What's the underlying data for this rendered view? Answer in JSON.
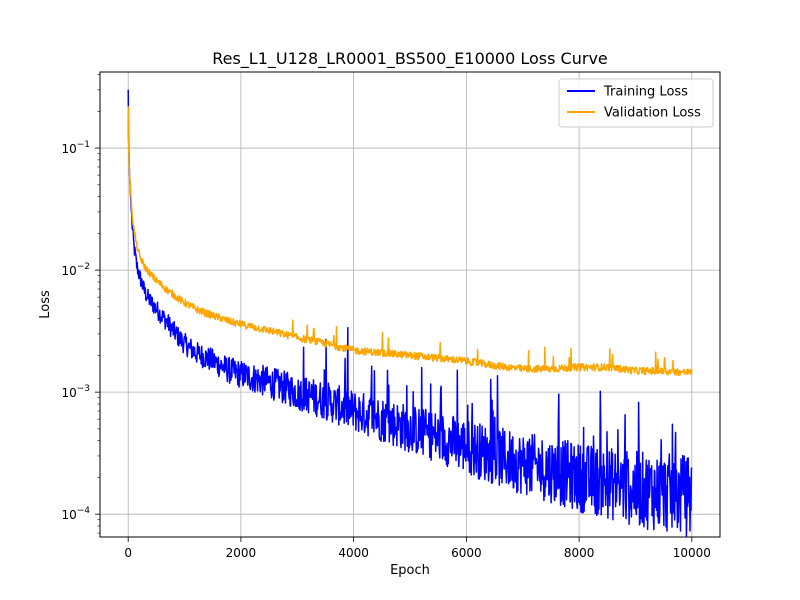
{
  "chart_data": {
    "type": "line",
    "title": "Res_L1_U128_LR0001_BS500_E10000 Loss Curve",
    "xlabel": "Epoch",
    "ylabel": "Loss",
    "xlim": [
      -500,
      10500
    ],
    "ylim": [
      6.5e-05,
      0.42
    ],
    "yscale": "log",
    "grid": true,
    "legend": "top-right",
    "x_ticks": [
      0,
      2000,
      4000,
      6000,
      8000,
      10000
    ],
    "x_tick_labels": [
      "0",
      "2000",
      "4000",
      "6000",
      "8000",
      "10000"
    ],
    "y_ticks": [
      0.0001,
      0.001,
      0.01,
      0.1
    ],
    "y_tick_labels": [
      "10",
      "10",
      "10",
      "10"
    ],
    "y_tick_exponents": [
      "−4",
      "−3",
      "−2",
      "−1"
    ],
    "series": [
      {
        "name": "Training Loss",
        "color": "#0000ff",
        "x": [
          0,
          10,
          25,
          50,
          75,
          100,
          150,
          200,
          300,
          400,
          500,
          600,
          700,
          800,
          900,
          1000,
          1200,
          1400,
          1600,
          1800,
          2000,
          2500,
          3000,
          3500,
          4000,
          4500,
          5000,
          5500,
          6000,
          6500,
          7000,
          7500,
          8000,
          8500,
          9000,
          9500,
          10000
        ],
        "values": [
          0.3,
          0.1,
          0.06,
          0.035,
          0.022,
          0.016,
          0.011,
          0.009,
          0.0065,
          0.0055,
          0.0048,
          0.0042,
          0.0037,
          0.0032,
          0.0028,
          0.0025,
          0.0021,
          0.0019,
          0.0017,
          0.0015,
          0.0014,
          0.0012,
          0.001,
          0.00085,
          0.0007,
          0.0006,
          0.0005,
          0.00043,
          0.00036,
          0.0003,
          0.00026,
          0.00023,
          0.0002,
          0.00018,
          0.00016,
          0.00015,
          0.00014
        ]
      },
      {
        "name": "Validation Loss",
        "color": "#ffa500",
        "x": [
          0,
          10,
          25,
          50,
          75,
          100,
          150,
          200,
          300,
          400,
          500,
          600,
          700,
          800,
          900,
          1000,
          1200,
          1400,
          1600,
          1800,
          2000,
          2500,
          3000,
          3500,
          4000,
          4500,
          5000,
          5500,
          6000,
          6500,
          7000,
          7500,
          8000,
          8500,
          9000,
          9500,
          10000
        ],
        "values": [
          0.22,
          0.09,
          0.06,
          0.04,
          0.028,
          0.022,
          0.016,
          0.013,
          0.0105,
          0.0092,
          0.0082,
          0.0075,
          0.0068,
          0.0063,
          0.0058,
          0.0054,
          0.0048,
          0.0044,
          0.0041,
          0.0038,
          0.0036,
          0.0032,
          0.0028,
          0.0025,
          0.0022,
          0.0021,
          0.002,
          0.0019,
          0.0018,
          0.00165,
          0.00155,
          0.00155,
          0.0016,
          0.0016,
          0.0015,
          0.00148,
          0.00145
        ]
      }
    ]
  }
}
